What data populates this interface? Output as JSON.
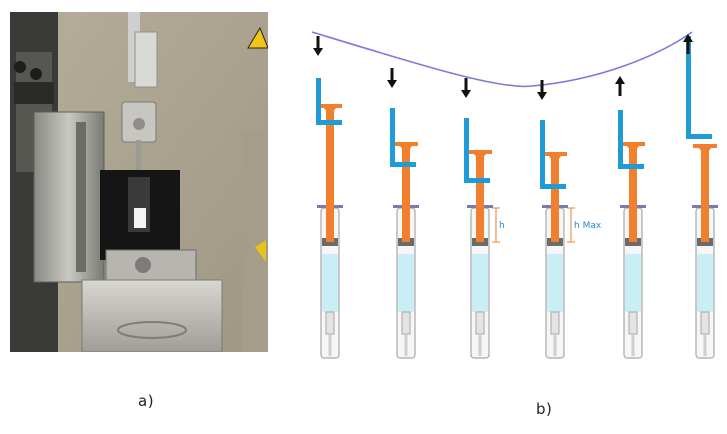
{
  "figure": {
    "caption_a": "a)",
    "caption_b": "b)"
  },
  "diagram": {
    "h_label": "h",
    "h_max_label": "h Max",
    "steps": [
      {
        "arrow": "down",
        "height_label": "",
        "label_color": "#1f8fd8"
      },
      {
        "arrow": "down",
        "height_label": "",
        "label_color": "#1f8fd8"
      },
      {
        "arrow": "down",
        "height_label": "h",
        "label_color": "#1f8fd8"
      },
      {
        "arrow": "down",
        "height_label": "h Max",
        "label_color": "#1f8fd8"
      },
      {
        "arrow": "up",
        "height_label": "",
        "label_color": "#1f8fd8"
      },
      {
        "arrow": "up",
        "height_label": "",
        "label_color": "#1f8fd8"
      }
    ]
  },
  "colors": {
    "probe": "#1f9bd8",
    "plunger": "#f07f2e",
    "liquid": "#c9eef6",
    "barrel": "#a8a8a8",
    "stopper": "#6b6b6b",
    "trajectory": "#7b7bd8",
    "arrow": "#111111",
    "flange": "#7a7ab0"
  }
}
